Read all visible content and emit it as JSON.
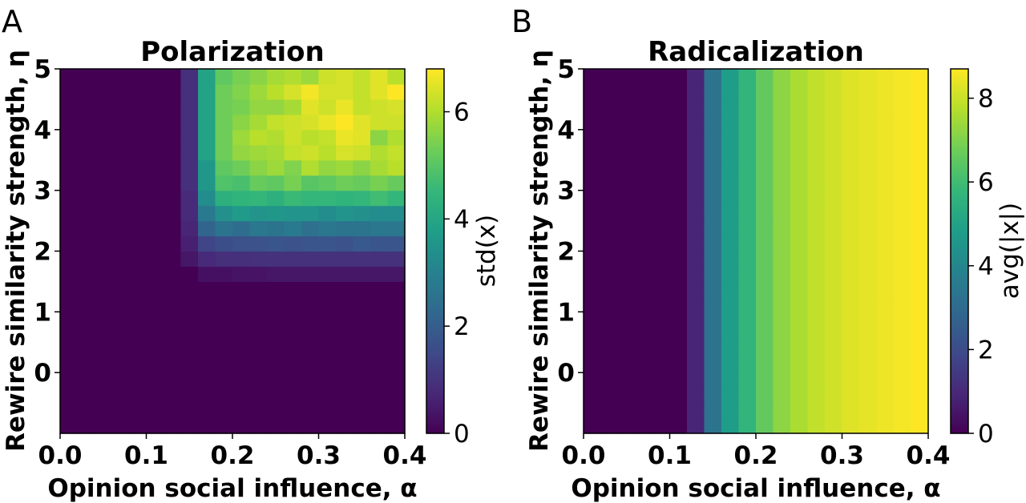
{
  "chart_data": [
    {
      "type": "heatmap",
      "panel": "A",
      "title": "Polarization",
      "xlabel": "Opinion social influence, α",
      "ylabel": "Rewire similarity strength, η",
      "xlim": [
        0.0,
        0.4
      ],
      "ylim": [
        -1.0,
        5.0
      ],
      "xticks": [
        "0.0",
        "0.1",
        "0.2",
        "0.3",
        "0.4"
      ],
      "yticks": [
        "0",
        "1",
        "2",
        "3",
        "4",
        "5"
      ],
      "colormap": "viridis",
      "colorbar": {
        "label": "std(x)",
        "vmin": 0,
        "vmax": 6.8,
        "ticks": [
          "0",
          "2",
          "4",
          "6"
        ]
      },
      "x": [
        0.0,
        0.02,
        0.04,
        0.06,
        0.08,
        0.1,
        0.12,
        0.14,
        0.16,
        0.18,
        0.2,
        0.22,
        0.24,
        0.26,
        0.28,
        0.3,
        0.32,
        0.34,
        0.36,
        0.38
      ],
      "y": [
        -1.0,
        -0.75,
        -0.5,
        -0.25,
        0.0,
        0.25,
        0.5,
        0.75,
        1.0,
        1.25,
        1.5,
        1.75,
        2.0,
        2.25,
        2.5,
        2.75,
        3.0,
        3.25,
        3.5,
        3.75,
        4.0,
        4.25,
        4.5,
        4.75
      ],
      "z": [
        [
          0,
          0,
          0,
          0,
          0,
          0,
          0,
          0,
          0,
          0,
          0,
          0,
          0,
          0,
          0,
          0,
          0,
          0,
          0,
          0
        ],
        [
          0,
          0,
          0,
          0,
          0,
          0,
          0,
          0,
          0,
          0,
          0,
          0,
          0,
          0,
          0,
          0,
          0,
          0,
          0,
          0
        ],
        [
          0,
          0,
          0,
          0,
          0,
          0,
          0,
          0,
          0,
          0,
          0,
          0,
          0,
          0,
          0,
          0,
          0,
          0,
          0,
          0
        ],
        [
          0,
          0,
          0,
          0,
          0,
          0,
          0,
          0,
          0,
          0,
          0,
          0,
          0,
          0,
          0,
          0,
          0,
          0,
          0,
          0
        ],
        [
          0,
          0,
          0,
          0,
          0,
          0,
          0,
          0,
          0,
          0,
          0,
          0,
          0,
          0,
          0,
          0,
          0,
          0,
          0,
          0
        ],
        [
          0,
          0,
          0,
          0,
          0,
          0,
          0,
          0,
          0,
          0,
          0,
          0,
          0,
          0,
          0,
          0,
          0,
          0,
          0,
          0
        ],
        [
          0,
          0,
          0,
          0,
          0,
          0,
          0,
          0,
          0,
          0,
          0,
          0,
          0,
          0,
          0,
          0,
          0,
          0,
          0,
          0
        ],
        [
          0,
          0,
          0,
          0,
          0,
          0,
          0,
          0,
          0,
          0,
          0,
          0,
          0,
          0,
          0,
          0,
          0,
          0,
          0,
          0
        ],
        [
          0,
          0,
          0,
          0,
          0,
          0,
          0,
          0,
          0,
          0,
          0,
          0,
          0,
          0,
          0,
          0,
          0,
          0,
          0,
          0
        ],
        [
          0,
          0,
          0,
          0,
          0,
          0,
          0,
          0,
          0,
          0,
          0,
          0,
          0,
          0,
          0,
          0,
          0,
          0,
          0,
          0
        ],
        [
          0,
          0,
          0,
          0,
          0,
          0,
          0,
          0,
          0.3,
          0.3,
          0.35,
          0.35,
          0.4,
          0.4,
          0.4,
          0.4,
          0.4,
          0.4,
          0.4,
          0.4
        ],
        [
          0,
          0,
          0,
          0,
          0,
          0,
          0,
          0.4,
          0.8,
          0.9,
          0.9,
          0.95,
          0.95,
          0.95,
          0.95,
          0.95,
          0.95,
          0.95,
          0.95,
          0.95
        ],
        [
          0,
          0,
          0,
          0,
          0,
          0,
          0,
          0.6,
          1.4,
          1.6,
          1.7,
          1.7,
          1.8,
          1.7,
          1.8,
          1.8,
          1.7,
          1.9,
          1.8,
          1.8
        ],
        [
          0,
          0,
          0,
          0,
          0,
          0,
          0,
          0.7,
          2.2,
          2.6,
          2.4,
          2.7,
          2.6,
          2.8,
          2.5,
          2.7,
          2.6,
          2.6,
          2.7,
          2.7
        ],
        [
          0,
          0,
          0,
          0,
          0,
          0,
          0,
          0.8,
          2.8,
          3.4,
          3.7,
          3.5,
          3.6,
          3.5,
          3.5,
          3.3,
          3.5,
          3.4,
          3.3,
          3.3
        ],
        [
          0,
          0,
          0,
          0,
          0,
          0,
          0,
          0.8,
          3.3,
          4.3,
          4.4,
          4.5,
          4.3,
          4.6,
          4.5,
          4.5,
          4.4,
          4.5,
          4.7,
          4.5
        ],
        [
          0,
          0,
          0,
          0,
          0,
          0,
          0,
          0.9,
          3.6,
          4.9,
          4.8,
          5.2,
          5.1,
          5.4,
          5.0,
          5.1,
          5.3,
          5.2,
          5.4,
          5.2
        ],
        [
          0,
          0,
          0,
          0,
          0,
          0,
          0,
          0.9,
          3.6,
          5.1,
          5.3,
          5.6,
          5.8,
          5.5,
          6.0,
          5.7,
          5.8,
          5.6,
          5.9,
          6.1
        ],
        [
          0,
          0,
          0,
          0,
          0,
          0,
          0,
          0.9,
          3.9,
          5.3,
          5.7,
          5.8,
          5.9,
          6.2,
          6.3,
          6.1,
          6.4,
          6.3,
          6.0,
          6.2
        ],
        [
          0,
          0,
          0,
          0,
          0,
          0,
          0,
          0.9,
          3.9,
          5.3,
          5.8,
          6.1,
          6.0,
          6.3,
          6.1,
          6.2,
          6.6,
          6.5,
          5.6,
          6.0
        ],
        [
          0,
          0,
          0,
          0,
          0,
          0,
          0,
          0.9,
          3.9,
          5.3,
          5.6,
          5.9,
          6.2,
          6.3,
          6.4,
          6.6,
          6.8,
          6.5,
          6.3,
          6.3
        ],
        [
          0,
          0,
          0,
          0,
          0,
          0,
          0,
          0.9,
          3.9,
          5.3,
          5.4,
          5.7,
          5.7,
          5.9,
          6.5,
          6.3,
          6.6,
          6.2,
          6.3,
          6.4
        ],
        [
          0,
          0,
          0,
          0,
          0,
          0,
          0,
          0.9,
          3.9,
          5.3,
          5.5,
          5.8,
          6.1,
          6.4,
          6.7,
          6.4,
          6.4,
          6.2,
          6.5,
          6.8
        ],
        [
          0,
          0,
          0,
          0,
          0,
          0,
          0,
          0.9,
          3.9,
          5.1,
          5.4,
          5.6,
          5.9,
          6.0,
          5.8,
          6.3,
          6.4,
          6.2,
          6.5,
          6.1
        ]
      ]
    },
    {
      "type": "heatmap",
      "panel": "B",
      "title": "Radicalization",
      "xlabel": "Opinion social influence, α",
      "ylabel": "Rewire similarity strength, η",
      "xlim": [
        0.0,
        0.4
      ],
      "ylim": [
        -1.0,
        5.0
      ],
      "xticks": [
        "0.0",
        "0.1",
        "0.2",
        "0.3",
        "0.4"
      ],
      "yticks": [
        "0",
        "1",
        "2",
        "3",
        "4",
        "5"
      ],
      "colormap": "viridis",
      "colorbar": {
        "label": "avg(|x|)",
        "vmin": 0,
        "vmax": 8.7,
        "ticks": [
          "0",
          "2",
          "4",
          "6",
          "8"
        ]
      },
      "x": [
        0.0,
        0.02,
        0.04,
        0.06,
        0.08,
        0.1,
        0.12,
        0.14,
        0.16,
        0.18,
        0.2,
        0.22,
        0.24,
        0.26,
        0.28,
        0.3,
        0.32,
        0.34,
        0.36,
        0.38
      ],
      "y": [
        -1.0,
        -0.75,
        -0.5,
        -0.25,
        0.0,
        0.25,
        0.5,
        0.75,
        1.0,
        1.25,
        1.5,
        1.75,
        2.0,
        2.25,
        2.5,
        2.75,
        3.0,
        3.25,
        3.5,
        3.75,
        4.0,
        4.25,
        4.5,
        4.75
      ],
      "profile": [
        0.0,
        0.0,
        0.0,
        0.0,
        0.0,
        0.0,
        0.9,
        3.3,
        4.8,
        5.7,
        6.6,
        7.2,
        7.6,
        7.9,
        8.1,
        8.3,
        8.4,
        8.5,
        8.6,
        8.7
      ]
    }
  ]
}
